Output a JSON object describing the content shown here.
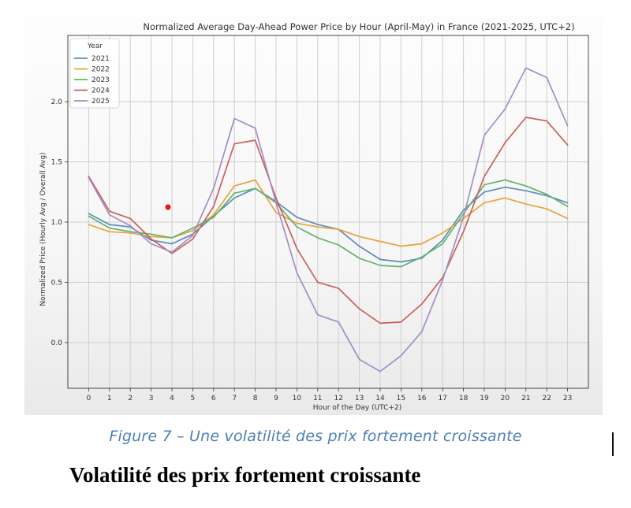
{
  "chart_data": {
    "type": "line",
    "title": "Normalized Average Day-Ahead Power Price by Hour (April-May) in France (2021-2025, UTC+2)",
    "xlabel": "Hour of the Day (UTC+2)",
    "ylabel": "Normalized Price (Hourly Avg / Overall Avg)",
    "x": [
      0,
      1,
      2,
      3,
      4,
      5,
      6,
      7,
      8,
      9,
      10,
      11,
      12,
      13,
      14,
      15,
      16,
      17,
      18,
      19,
      20,
      21,
      22,
      23
    ],
    "xticks": [
      "0",
      "1",
      "2",
      "3",
      "4",
      "5",
      "6",
      "7",
      "8",
      "9",
      "10",
      "11",
      "12",
      "13",
      "14",
      "15",
      "16",
      "17",
      "18",
      "19",
      "20",
      "21",
      "22",
      "23"
    ],
    "yticks": [
      "0.0",
      "0.5",
      "1.0",
      "1.5",
      "2.0"
    ],
    "xlim": [
      -1,
      24
    ],
    "ylim": [
      -0.38,
      2.55
    ],
    "grid": true,
    "legend": {
      "title": "Year",
      "position": "top-left"
    },
    "series": [
      {
        "name": "2021",
        "color": "#5b8db8",
        "values": [
          1.07,
          0.98,
          0.96,
          0.85,
          0.82,
          0.9,
          1.05,
          1.2,
          1.28,
          1.17,
          1.04,
          0.98,
          0.94,
          0.8,
          0.69,
          0.67,
          0.7,
          0.85,
          1.1,
          1.25,
          1.29,
          1.26,
          1.22,
          1.16
        ]
      },
      {
        "name": "2022",
        "color": "#e8a33a",
        "values": [
          0.98,
          0.92,
          0.91,
          0.88,
          0.87,
          0.93,
          1.06,
          1.3,
          1.35,
          1.08,
          0.99,
          0.96,
          0.94,
          0.88,
          0.84,
          0.8,
          0.82,
          0.91,
          1.03,
          1.16,
          1.2,
          1.15,
          1.11,
          1.03
        ]
      },
      {
        "name": "2023",
        "color": "#63b36a",
        "values": [
          1.05,
          0.95,
          0.92,
          0.9,
          0.87,
          0.95,
          1.04,
          1.24,
          1.28,
          1.16,
          0.96,
          0.87,
          0.81,
          0.7,
          0.64,
          0.63,
          0.71,
          0.82,
          1.07,
          1.31,
          1.35,
          1.3,
          1.23,
          1.13
        ]
      },
      {
        "name": "2024",
        "color": "#c9605d",
        "values": [
          1.38,
          1.09,
          1.03,
          0.86,
          0.74,
          0.86,
          1.13,
          1.65,
          1.68,
          1.2,
          0.78,
          0.5,
          0.45,
          0.28,
          0.16,
          0.17,
          0.32,
          0.54,
          0.92,
          1.38,
          1.66,
          1.87,
          1.84,
          1.64
        ]
      },
      {
        "name": "2025",
        "color": "#a48ec4",
        "values": [
          1.37,
          1.06,
          0.97,
          0.82,
          0.75,
          0.89,
          1.28,
          1.86,
          1.78,
          1.16,
          0.58,
          0.23,
          0.17,
          -0.14,
          -0.24,
          -0.11,
          0.09,
          0.52,
          1.04,
          1.72,
          1.94,
          2.28,
          2.2,
          1.8
        ]
      }
    ]
  },
  "caption": "Figure 7 – Une volatilité des prix fortement croissante",
  "heading": "Volatilité des prix fortement croissante",
  "colors": {
    "caption": "#4d7fb5",
    "marker_dot": "#e0201c"
  }
}
